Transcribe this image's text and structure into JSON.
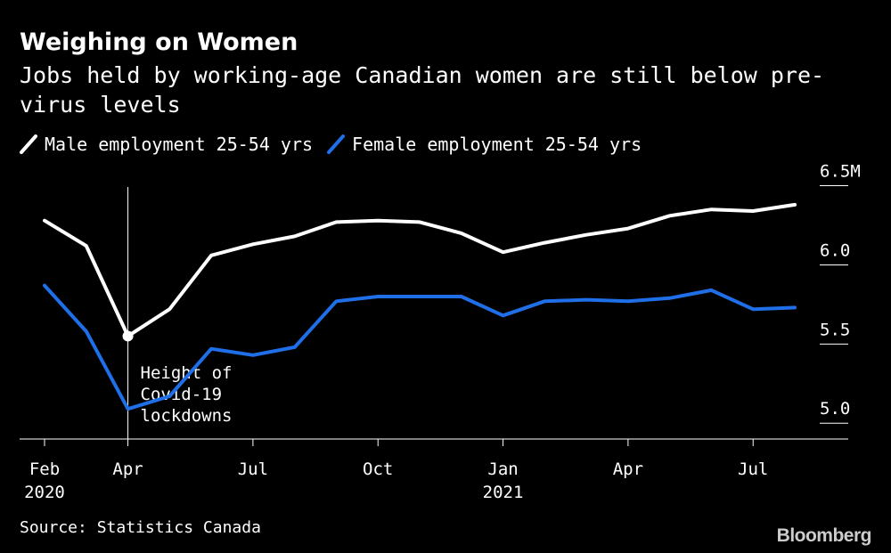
{
  "title": "Weighing on Women",
  "subtitle": "Jobs held by working-age Canadian women are still below pre-virus levels",
  "source": "Source: Statistics Canada",
  "brand": "Bloomberg",
  "chart_data": {
    "type": "line",
    "x": [
      "2020-02",
      "2020-03",
      "2020-04",
      "2020-05",
      "2020-06",
      "2020-07",
      "2020-08",
      "2020-09",
      "2020-10",
      "2020-11",
      "2020-12",
      "2021-01",
      "2021-02",
      "2021-03",
      "2021-04",
      "2021-05",
      "2021-06",
      "2021-07",
      "2021-08"
    ],
    "series": [
      {
        "name": "Male employment 25-54 yrs",
        "color": "#ffffff",
        "values": [
          6.28,
          6.12,
          5.55,
          5.72,
          6.06,
          6.13,
          6.18,
          6.27,
          6.28,
          6.27,
          6.2,
          6.08,
          6.14,
          6.19,
          6.23,
          6.31,
          6.35,
          6.34,
          6.38
        ]
      },
      {
        "name": "Female employment 25-54 yrs",
        "color": "#1f6fe8",
        "values": [
          5.87,
          5.58,
          5.09,
          5.17,
          5.47,
          5.43,
          5.48,
          5.77,
          5.8,
          5.8,
          5.8,
          5.68,
          5.77,
          5.78,
          5.77,
          5.79,
          5.84,
          5.72,
          5.73
        ]
      }
    ],
    "x_tick_labels": [
      {
        "x": "2020-02",
        "line1": "Feb",
        "line2": "2020"
      },
      {
        "x": "2020-04",
        "line1": "Apr",
        "line2": ""
      },
      {
        "x": "2020-07",
        "line1": "Jul",
        "line2": ""
      },
      {
        "x": "2020-10",
        "line1": "Oct",
        "line2": ""
      },
      {
        "x": "2021-01",
        "line1": "Jan",
        "line2": "2021"
      },
      {
        "x": "2021-04",
        "line1": "Apr",
        "line2": ""
      },
      {
        "x": "2021-07",
        "line1": "Jul",
        "line2": ""
      }
    ],
    "y_ticks": [
      {
        "value": 5.0,
        "label": "5.0"
      },
      {
        "value": 5.5,
        "label": "5.5"
      },
      {
        "value": 6.0,
        "label": "6.0"
      },
      {
        "value": 6.5,
        "label": "6.5M"
      }
    ],
    "ylim": [
      4.9,
      6.52
    ],
    "annotation": {
      "x": "2020-04",
      "lines": [
        "Height of",
        "Covid-19",
        "lockdowns"
      ]
    },
    "legend_position": "top-left",
    "grid": false
  }
}
